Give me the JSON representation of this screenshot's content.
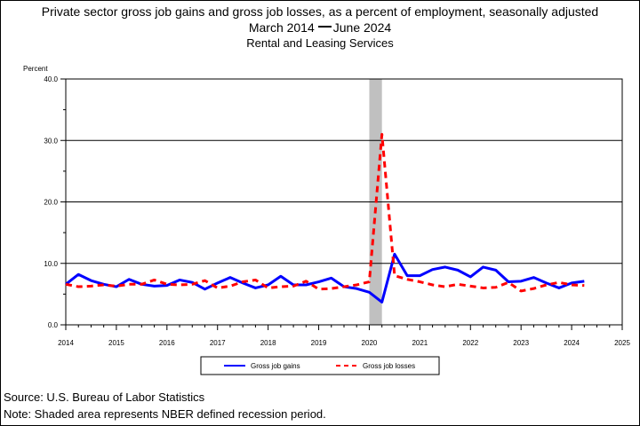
{
  "chart_data": {
    "type": "line",
    "title": "Private sector gross job gains and gross job losses, as a percent of employment, seasonally adjusted",
    "subtitle_start": "March 2014",
    "subtitle_end": "June 2024",
    "subtitle2": "Rental and Leasing Services",
    "ylabel": "Percent",
    "ylim": [
      0,
      40
    ],
    "yticks": [
      "0.0",
      "10.0",
      "20.0",
      "30.0",
      "40.0"
    ],
    "xlim": [
      2014,
      2025
    ],
    "xticks": [
      "2014",
      "2015",
      "2016",
      "2017",
      "2018",
      "2019",
      "2020",
      "2021",
      "2022",
      "2023",
      "2024",
      "2025"
    ],
    "grid": "horizontal",
    "legend_position": "bottom",
    "recession": {
      "start": "2020Q1",
      "end": "2020Q2",
      "color": "#c0c0c0"
    },
    "x": [
      "2014Q1",
      "2014Q2",
      "2014Q3",
      "2014Q4",
      "2015Q1",
      "2015Q2",
      "2015Q3",
      "2015Q4",
      "2016Q1",
      "2016Q2",
      "2016Q3",
      "2016Q4",
      "2017Q1",
      "2017Q2",
      "2017Q3",
      "2017Q4",
      "2018Q1",
      "2018Q2",
      "2018Q3",
      "2018Q4",
      "2019Q1",
      "2019Q2",
      "2019Q3",
      "2019Q4",
      "2020Q1",
      "2020Q2",
      "2020Q3",
      "2020Q4",
      "2021Q1",
      "2021Q2",
      "2021Q3",
      "2021Q4",
      "2022Q1",
      "2022Q2",
      "2022Q3",
      "2022Q4",
      "2023Q1",
      "2023Q2",
      "2023Q3",
      "2023Q4",
      "2024Q1",
      "2024Q2"
    ],
    "series": [
      {
        "name": "Gross job gains",
        "color": "#0000ff",
        "style": "solid",
        "values": [
          6.6,
          8.2,
          7.2,
          6.6,
          6.2,
          7.4,
          6.6,
          6.3,
          6.4,
          7.3,
          6.9,
          5.8,
          6.8,
          7.7,
          6.8,
          6.0,
          6.5,
          7.9,
          6.5,
          6.5,
          7.0,
          7.6,
          6.2,
          5.9,
          5.3,
          3.7,
          11.5,
          8.0,
          8.0,
          9.0,
          9.4,
          8.9,
          7.8,
          9.4,
          8.9,
          7.0,
          7.1,
          7.7,
          6.8,
          6.0,
          6.8,
          7.1
        ]
      },
      {
        "name": "Gross job losses",
        "color": "#ff0000",
        "style": "dashed",
        "values": [
          6.6,
          6.2,
          6.3,
          6.5,
          6.3,
          6.6,
          6.6,
          7.3,
          6.6,
          6.5,
          6.6,
          7.2,
          6.0,
          6.3,
          7.0,
          7.3,
          6.0,
          6.2,
          6.3,
          7.1,
          5.8,
          5.9,
          6.2,
          6.5,
          7.0,
          31.0,
          8.0,
          7.4,
          7.0,
          6.5,
          6.2,
          6.6,
          6.3,
          6.0,
          6.1,
          6.9,
          5.5,
          5.9,
          6.5,
          6.9,
          6.5,
          6.4
        ]
      }
    ]
  },
  "footer": {
    "source": "Source: U.S. Bureau of Labor Statistics",
    "note": "Note: Shaded area represents NBER defined recession period."
  }
}
